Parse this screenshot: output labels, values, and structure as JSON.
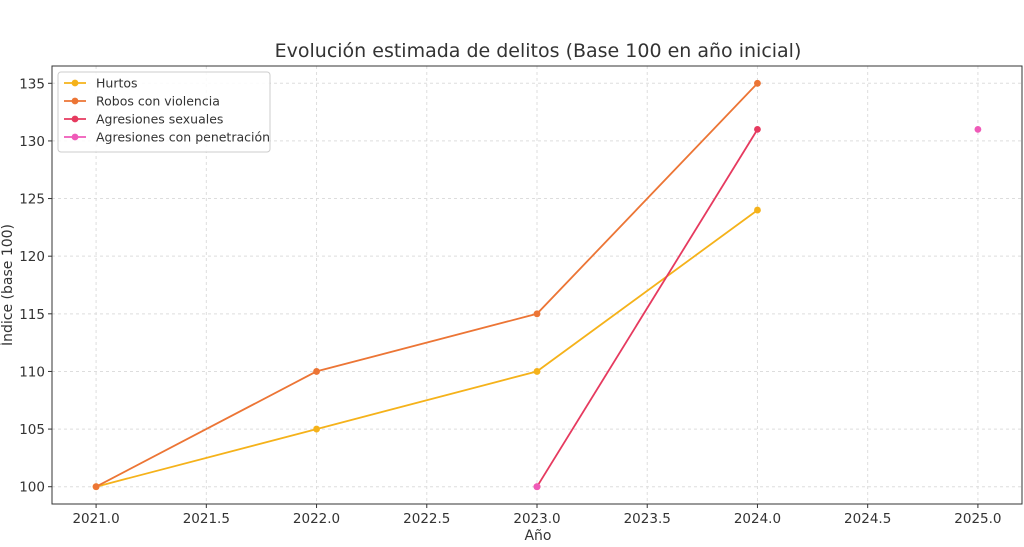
{
  "chart_data": {
    "type": "line",
    "title": "Evolución estimada de delitos (Base 100 en año inicial)",
    "xlabel": "Año",
    "ylabel": "Índice (base 100)",
    "xlim": [
      2020.8,
      2025.2
    ],
    "ylim": [
      98.5,
      136.5
    ],
    "xticks": [
      2021.0,
      2021.5,
      2022.0,
      2022.5,
      2023.0,
      2023.5,
      2024.0,
      2024.5,
      2025.0
    ],
    "xtick_labels": [
      "2021.0",
      "2021.5",
      "2022.0",
      "2022.5",
      "2023.0",
      "2023.5",
      "2024.0",
      "2024.5",
      "2025.0"
    ],
    "yticks": [
      100,
      105,
      110,
      115,
      120,
      125,
      130,
      135
    ],
    "ytick_labels": [
      "100",
      "105",
      "110",
      "115",
      "120",
      "125",
      "130",
      "135"
    ],
    "grid": true,
    "legend_position": "top-left",
    "series": [
      {
        "name": "Hurtos",
        "color": "#F5B21A",
        "x": [
          2021,
          2022,
          2023,
          2024
        ],
        "y": [
          100,
          105,
          110,
          124
        ]
      },
      {
        "name": "Robos con violencia",
        "color": "#EC7535",
        "x": [
          2021,
          2022,
          2023,
          2024
        ],
        "y": [
          100,
          110,
          115,
          135
        ]
      },
      {
        "name": "Agresiones sexuales",
        "color": "#E63A5F",
        "x": [
          2023,
          2024
        ],
        "y": [
          100,
          131
        ]
      },
      {
        "name": "Agresiones con penetración",
        "color": "#EF5AB8",
        "x": [
          2023,
          2025
        ],
        "y": [
          100,
          131
        ],
        "markers_only": true
      }
    ]
  }
}
